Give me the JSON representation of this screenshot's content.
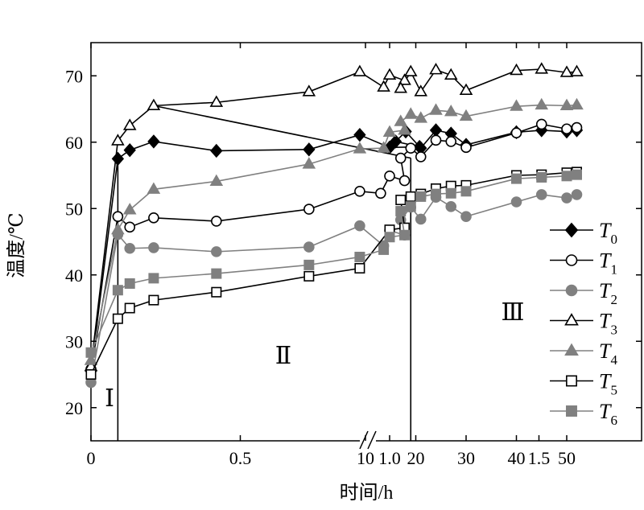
{
  "chart_data": {
    "type": "line",
    "xlabel": "时间/h",
    "ylabel": "温度/℃",
    "ylim": [
      15,
      75
    ],
    "x_ticks": {
      "left_segment": [
        "0",
        "0.5",
        "1.0",
        "1.5"
      ],
      "right_segment": [
        "10",
        "20",
        "30",
        "40",
        "50"
      ]
    },
    "y_ticks": [
      "20",
      "30",
      "40",
      "50",
      "60",
      "70"
    ],
    "axis_break": "between 1.75 h and 10 h",
    "legend_position": "right",
    "region_labels": [
      "Ⅰ",
      "Ⅱ",
      "Ⅲ"
    ],
    "colors": {
      "black": "#000000",
      "gray": "#808080"
    },
    "series": [
      {
        "name": "T",
        "sub": "0",
        "marker": "diamond",
        "filled": true,
        "color": "#000000",
        "points": [
          [
            0,
            25.5
          ],
          [
            0.09,
            57.5
          ],
          [
            0.13,
            58.8
          ],
          [
            0.21,
            60.1
          ],
          [
            0.42,
            58.7
          ],
          [
            0.73,
            58.9
          ],
          [
            0.9,
            61.1
          ],
          [
            1.0,
            59.2
          ],
          [
            1.1,
            59.3
          ],
          [
            16,
            60.1
          ],
          [
            18,
            61.6
          ],
          [
            21,
            59.1
          ],
          [
            24,
            61.8
          ],
          [
            27,
            61.3
          ],
          [
            30,
            59.6
          ],
          [
            40,
            61.5
          ],
          [
            45,
            61.8
          ],
          [
            50,
            61.6
          ],
          [
            52,
            61.8
          ]
        ]
      },
      {
        "name": "T",
        "sub": "1",
        "marker": "circle",
        "filled": false,
        "color": "#000000",
        "points": [
          [
            0,
            25.8
          ],
          [
            0.09,
            48.8
          ],
          [
            0.13,
            47.2
          ],
          [
            0.21,
            48.6
          ],
          [
            0.42,
            48.1
          ],
          [
            0.73,
            49.9
          ],
          [
            0.9,
            52.6
          ],
          [
            0.97,
            52.3
          ],
          [
            1.0,
            54.9
          ],
          [
            1.05,
            54.2
          ],
          [
            17,
            57.6
          ],
          [
            19,
            59.1
          ],
          [
            21,
            57.8
          ],
          [
            24,
            60.3
          ],
          [
            27,
            60.1
          ],
          [
            30,
            59.2
          ],
          [
            40,
            61.4
          ],
          [
            45,
            62.7
          ],
          [
            50,
            62.0
          ],
          [
            52,
            62.2
          ]
        ]
      },
      {
        "name": "T",
        "sub": "2",
        "marker": "circle",
        "filled": true,
        "color": "#808080",
        "points": [
          [
            0,
            23.8
          ],
          [
            0.09,
            46.1
          ],
          [
            0.13,
            44.0
          ],
          [
            0.21,
            44.1
          ],
          [
            0.42,
            43.5
          ],
          [
            0.73,
            44.2
          ],
          [
            0.9,
            47.4
          ],
          [
            0.98,
            44.4
          ],
          [
            1.0,
            46.7
          ],
          [
            1.05,
            46.0
          ],
          [
            17,
            48.3
          ],
          [
            19,
            50.2
          ],
          [
            21,
            48.4
          ],
          [
            24,
            51.7
          ],
          [
            27,
            50.3
          ],
          [
            30,
            48.8
          ],
          [
            40,
            51.0
          ],
          [
            45,
            52.1
          ],
          [
            50,
            51.6
          ],
          [
            52,
            52.1
          ]
        ]
      },
      {
        "name": "T",
        "sub": "3",
        "marker": "triangle",
        "filled": false,
        "color": "#000000",
        "points": [
          [
            0,
            26.2
          ],
          [
            0.09,
            60.2
          ],
          [
            0.13,
            62.5
          ],
          [
            0.21,
            65.5
          ],
          [
            0.42,
            66.0
          ],
          [
            0.73,
            67.6
          ],
          [
            0.9,
            70.6
          ],
          [
            0.98,
            68.3
          ],
          [
            1.0,
            70.1
          ],
          [
            1.05,
            69.3
          ],
          [
            17,
            68.1
          ],
          [
            19,
            70.6
          ],
          [
            21,
            67.6
          ],
          [
            24,
            70.9
          ],
          [
            27,
            70.1
          ],
          [
            30,
            67.8
          ],
          [
            40,
            70.8
          ],
          [
            45,
            71.0
          ],
          [
            50,
            70.5
          ],
          [
            52,
            70.6
          ]
        ]
      },
      {
        "name": "T",
        "sub": "4",
        "marker": "triangle",
        "filled": true,
        "color": "#808080",
        "points": [
          [
            0,
            27.1
          ],
          [
            0.09,
            46.8
          ],
          [
            0.13,
            49.8
          ],
          [
            0.21,
            52.9
          ],
          [
            0.42,
            54.1
          ],
          [
            0.73,
            56.7
          ],
          [
            0.9,
            59.0
          ],
          [
            0.98,
            59.1
          ],
          [
            1.0,
            61.5
          ],
          [
            1.05,
            61.8
          ],
          [
            17,
            63.1
          ],
          [
            19,
            64.2
          ],
          [
            21,
            63.6
          ],
          [
            24,
            64.8
          ],
          [
            27,
            64.6
          ],
          [
            30,
            63.9
          ],
          [
            40,
            65.4
          ],
          [
            45,
            65.6
          ],
          [
            50,
            65.5
          ],
          [
            52,
            65.6
          ]
        ]
      },
      {
        "name": "T",
        "sub": "5",
        "marker": "square",
        "filled": false,
        "color": "#000000",
        "points": [
          [
            0,
            25.0
          ],
          [
            0.09,
            33.4
          ],
          [
            0.13,
            35.0
          ],
          [
            0.21,
            36.2
          ],
          [
            0.42,
            37.4
          ],
          [
            0.73,
            39.8
          ],
          [
            0.9,
            41.0
          ],
          [
            1.0,
            46.8
          ],
          [
            1.05,
            47.1
          ],
          [
            17,
            51.3
          ],
          [
            19,
            51.8
          ],
          [
            21,
            52.2
          ],
          [
            24,
            53.0
          ],
          [
            27,
            53.4
          ],
          [
            30,
            53.5
          ],
          [
            40,
            55.0
          ],
          [
            45,
            55.1
          ],
          [
            50,
            55.4
          ],
          [
            52,
            55.5
          ]
        ]
      },
      {
        "name": "T",
        "sub": "6",
        "marker": "square",
        "filled": true,
        "color": "#808080",
        "points": [
          [
            0,
            28.3
          ],
          [
            0.09,
            37.7
          ],
          [
            0.13,
            38.7
          ],
          [
            0.21,
            39.5
          ],
          [
            0.42,
            40.2
          ],
          [
            0.73,
            41.5
          ],
          [
            0.9,
            42.7
          ],
          [
            0.98,
            43.8
          ],
          [
            1.0,
            45.7
          ],
          [
            1.05,
            46.0
          ],
          [
            17,
            49.6
          ],
          [
            19,
            50.3
          ],
          [
            21,
            51.8
          ],
          [
            24,
            52.2
          ],
          [
            27,
            52.3
          ],
          [
            30,
            52.6
          ],
          [
            40,
            54.5
          ],
          [
            45,
            54.7
          ],
          [
            50,
            54.9
          ],
          [
            52,
            55.1
          ]
        ]
      }
    ],
    "annotation_lines": [
      {
        "description": "vertical line at x=0.09",
        "x": 0.09,
        "y_from": 15,
        "y_to": 57.5
      },
      {
        "description": "sloped line",
        "from": [
          0.21,
          65.5
        ],
        "to": [
          19,
          57.6
        ]
      },
      {
        "description": "vertical line at x=19",
        "x": 19,
        "y_from": 15,
        "y_to": 57.6
      }
    ]
  }
}
